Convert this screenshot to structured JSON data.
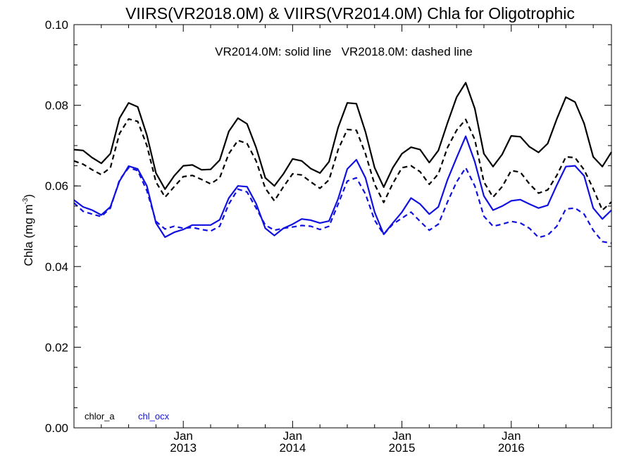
{
  "chart_data": {
    "type": "line",
    "title": "VIIRS(VR2018.0M) & VIIRS(VR2014.0M)  Chla for Oligotrophic",
    "subtitle": "VR2014.0M: solid line   VR2018.0M: dashed line",
    "ylabel_main": "Chla (mg m",
    "ylabel_sup": "-3",
    "ylabel_close": ")",
    "ylim": [
      0.0,
      0.1
    ],
    "yticks": [
      "0.00",
      "0.02",
      "0.04",
      "0.06",
      "0.08",
      "0.10"
    ],
    "ytick_values": [
      0.0,
      0.02,
      0.04,
      0.06,
      0.08,
      0.1
    ],
    "xlim": [
      "2012-01",
      "2016-12"
    ],
    "xticks": [
      {
        "month": "Jan",
        "year": "2013",
        "date": "2013-01"
      },
      {
        "month": "Jan",
        "year": "2014",
        "date": "2014-01"
      },
      {
        "month": "Jan",
        "year": "2015",
        "date": "2015-01"
      },
      {
        "month": "Jan",
        "year": "2016",
        "date": "2016-01"
      }
    ],
    "x": [
      "2012-01",
      "2012-02",
      "2012-03",
      "2012-04",
      "2012-05",
      "2012-06",
      "2012-07",
      "2012-08",
      "2012-09",
      "2012-10",
      "2012-11",
      "2012-12",
      "2013-01",
      "2013-02",
      "2013-03",
      "2013-04",
      "2013-05",
      "2013-06",
      "2013-07",
      "2013-08",
      "2013-09",
      "2013-10",
      "2013-11",
      "2013-12",
      "2014-01",
      "2014-02",
      "2014-03",
      "2014-04",
      "2014-05",
      "2014-06",
      "2014-07",
      "2014-08",
      "2014-09",
      "2014-10",
      "2014-11",
      "2014-12",
      "2015-01",
      "2015-02",
      "2015-03",
      "2015-04",
      "2015-05",
      "2015-06",
      "2015-07",
      "2015-08",
      "2015-09",
      "2015-10",
      "2015-11",
      "2015-12",
      "2016-01",
      "2016-02",
      "2016-03",
      "2016-04",
      "2016-05",
      "2016-06",
      "2016-07",
      "2016-08",
      "2016-09",
      "2016-10",
      "2016-11",
      "2016-12"
    ],
    "grid": false,
    "legend_entries": [
      {
        "label": "chlor_a",
        "color": "#000000"
      },
      {
        "label": "chl_ocx",
        "color": "#1010e0"
      }
    ],
    "legend_position": "bottom-left",
    "series": [
      {
        "algorithm": "chlor_a",
        "version": "VR2014.0M",
        "style": "solid",
        "color": "#000000",
        "values": [
          0.069,
          0.0688,
          0.067,
          0.0656,
          0.068,
          0.0768,
          0.0806,
          0.0796,
          0.0726,
          0.0632,
          0.0592,
          0.0625,
          0.065,
          0.0652,
          0.064,
          0.0641,
          0.0664,
          0.0735,
          0.0768,
          0.0754,
          0.0695,
          0.062,
          0.06,
          0.063,
          0.0667,
          0.0662,
          0.0643,
          0.0632,
          0.066,
          0.0745,
          0.0806,
          0.0804,
          0.0734,
          0.0645,
          0.0597,
          0.0645,
          0.068,
          0.0696,
          0.069,
          0.0658,
          0.0688,
          0.0756,
          0.082,
          0.0856,
          0.0792,
          0.068,
          0.0648,
          0.0678,
          0.0724,
          0.0722,
          0.0697,
          0.0683,
          0.0705,
          0.0766,
          0.082,
          0.0808,
          0.0755,
          0.0672,
          0.0648,
          0.0684
        ]
      },
      {
        "algorithm": "chlor_a",
        "version": "VR2018.0M",
        "style": "dashed",
        "color": "#000000",
        "values": [
          0.0662,
          0.0654,
          0.064,
          0.0628,
          0.0645,
          0.073,
          0.0766,
          0.076,
          0.07,
          0.061,
          0.0572,
          0.0598,
          0.0623,
          0.0626,
          0.0616,
          0.0605,
          0.062,
          0.068,
          0.0713,
          0.0705,
          0.0662,
          0.0594,
          0.0563,
          0.0598,
          0.063,
          0.0627,
          0.061,
          0.0594,
          0.0615,
          0.069,
          0.074,
          0.0738,
          0.068,
          0.0604,
          0.0559,
          0.0606,
          0.0645,
          0.065,
          0.0635,
          0.0604,
          0.063,
          0.0695,
          0.0738,
          0.0765,
          0.0715,
          0.061,
          0.0572,
          0.0598,
          0.0638,
          0.0634,
          0.0605,
          0.0582,
          0.059,
          0.0626,
          0.0672,
          0.067,
          0.064,
          0.0593,
          0.054,
          0.056
        ]
      },
      {
        "algorithm": "chl_ocx",
        "version": "VR2014.0M",
        "style": "solid",
        "color": "#1010e0",
        "values": [
          0.0565,
          0.0548,
          0.054,
          0.0528,
          0.0548,
          0.0612,
          0.0649,
          0.0642,
          0.06,
          0.0508,
          0.0473,
          0.0485,
          0.0492,
          0.0503,
          0.0503,
          0.0503,
          0.0516,
          0.057,
          0.06,
          0.0598,
          0.0556,
          0.0495,
          0.0477,
          0.0495,
          0.0505,
          0.0518,
          0.0515,
          0.0508,
          0.0513,
          0.0568,
          0.0642,
          0.0665,
          0.062,
          0.0535,
          0.048,
          0.0508,
          0.0535,
          0.057,
          0.0555,
          0.053,
          0.0548,
          0.0615,
          0.067,
          0.0723,
          0.066,
          0.0575,
          0.054,
          0.055,
          0.0563,
          0.0566,
          0.0555,
          0.0545,
          0.0552,
          0.0602,
          0.0648,
          0.065,
          0.0625,
          0.0545,
          0.0518,
          0.054
        ]
      },
      {
        "algorithm": "chl_ocx",
        "version": "VR2018.0M",
        "style": "dashed",
        "color": "#1010e0",
        "values": [
          0.0558,
          0.0537,
          0.053,
          0.0524,
          0.0545,
          0.0615,
          0.0645,
          0.0638,
          0.0588,
          0.0512,
          0.0493,
          0.05,
          0.0495,
          0.0497,
          0.0492,
          0.0488,
          0.05,
          0.0555,
          0.0592,
          0.0585,
          0.0545,
          0.0503,
          0.049,
          0.0495,
          0.0498,
          0.0502,
          0.05,
          0.0492,
          0.05,
          0.0555,
          0.0612,
          0.062,
          0.058,
          0.0515,
          0.048,
          0.0505,
          0.052,
          0.0535,
          0.0512,
          0.049,
          0.0505,
          0.056,
          0.061,
          0.0645,
          0.06,
          0.0525,
          0.05,
          0.0505,
          0.0512,
          0.0508,
          0.0495,
          0.0472,
          0.0478,
          0.05,
          0.0543,
          0.0545,
          0.053,
          0.049,
          0.0462,
          0.0458
        ]
      }
    ]
  }
}
